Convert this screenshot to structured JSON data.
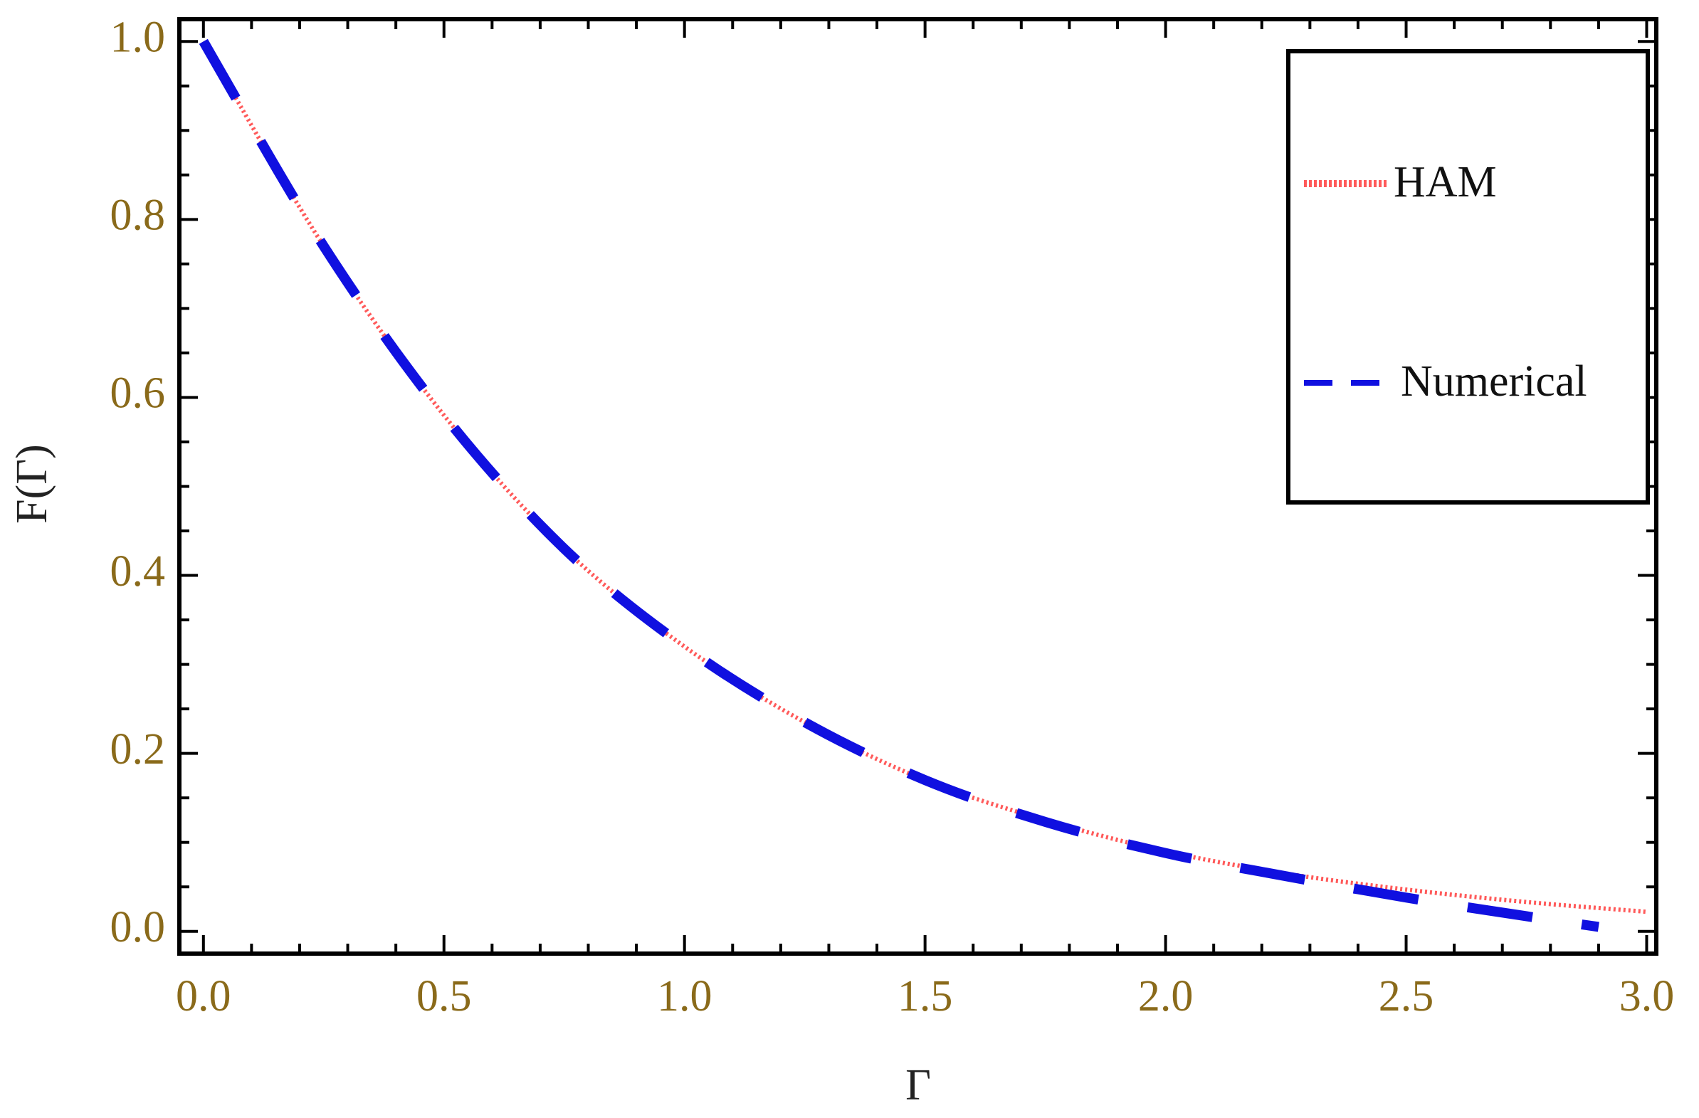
{
  "chart_data": {
    "type": "line",
    "title": "",
    "xlabel": "Γ",
    "ylabel": "F(Γ)",
    "xlim": [
      -0.05,
      3.02
    ],
    "ylim": [
      -0.025,
      1.025
    ],
    "x_ticks": [
      0.0,
      0.5,
      1.0,
      1.5,
      2.0,
      2.5,
      3.0
    ],
    "x_tick_labels": [
      "0.0",
      "0.5",
      "1.0",
      "1.5",
      "2.0",
      "2.5",
      "3.0"
    ],
    "y_ticks": [
      0.0,
      0.2,
      0.4,
      0.6,
      0.8,
      1.0
    ],
    "y_tick_labels": [
      "0.0",
      "0.2",
      "0.4",
      "0.6",
      "0.8",
      "1.0"
    ],
    "grid": false,
    "legend_position": "top-right",
    "series": [
      {
        "name": "HAM",
        "style": "dotted",
        "color": "#ff5a5a",
        "x": [
          0.0,
          0.25,
          0.5,
          0.75,
          1.0,
          1.25,
          1.5,
          1.75,
          2.0,
          2.25,
          2.5,
          2.75,
          3.0
        ],
        "y": [
          1.0,
          0.77,
          0.58,
          0.43,
          0.32,
          0.235,
          0.17,
          0.125,
          0.09,
          0.065,
          0.047,
          0.033,
          0.022
        ]
      },
      {
        "name": "Numerical",
        "style": "dashed",
        "color": "#1010e0",
        "x": [
          0.0,
          0.25,
          0.5,
          0.75,
          1.0,
          1.25,
          1.5,
          1.75,
          2.0,
          2.25,
          2.5,
          2.75,
          2.9
        ],
        "y": [
          1.0,
          0.77,
          0.58,
          0.43,
          0.32,
          0.235,
          0.17,
          0.123,
          0.088,
          0.062,
          0.038,
          0.017,
          0.005
        ]
      }
    ]
  }
}
